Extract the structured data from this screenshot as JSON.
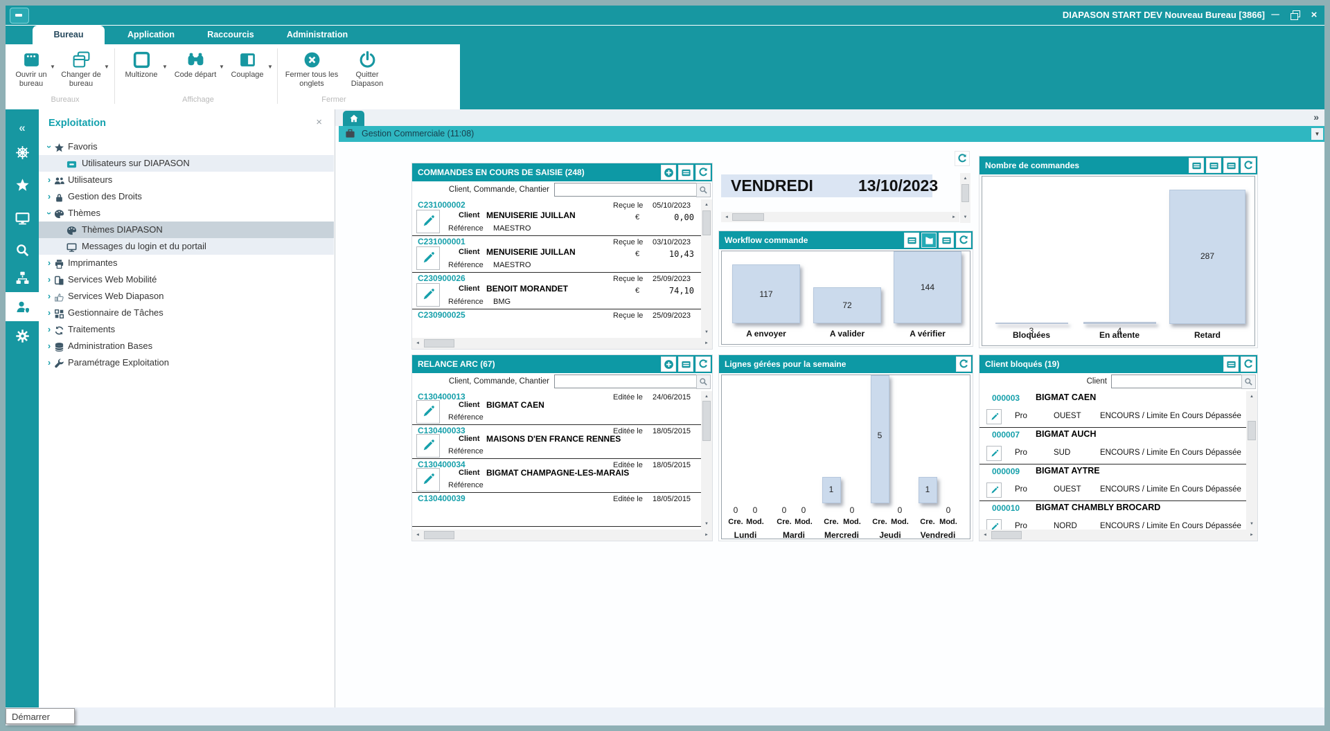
{
  "window": {
    "title": "DIAPASON START DEV Nouveau Bureau [3866]",
    "controls": {
      "minimize": "minimize",
      "restore": "restore",
      "close": "close"
    }
  },
  "ribbon": {
    "tabs": [
      {
        "label": "Bureau",
        "active": true
      },
      {
        "label": "Application",
        "active": false
      },
      {
        "label": "Raccourcis",
        "active": false
      },
      {
        "label": "Administration",
        "active": false
      }
    ],
    "groups": [
      {
        "label": "Bureaux",
        "buttons": [
          {
            "label": "Ouvrir un bureau",
            "icon": "open-desk",
            "dropdown": true
          },
          {
            "label": "Changer de bureau",
            "icon": "switch-desk",
            "dropdown": true
          }
        ]
      },
      {
        "label": "Affichage",
        "buttons": [
          {
            "label": "Multizone",
            "icon": "multizone",
            "dropdown": true
          },
          {
            "label": "Code départ",
            "icon": "binoculars",
            "dropdown": true
          },
          {
            "label": "Couplage",
            "icon": "couplage",
            "dropdown": true
          }
        ]
      },
      {
        "label": "Fermer",
        "buttons": [
          {
            "label": "Fermer tous les onglets",
            "icon": "close-circle",
            "dropdown": false
          },
          {
            "label": "Quitter Diapason",
            "icon": "power",
            "dropdown": false
          }
        ]
      }
    ]
  },
  "sidebar": {
    "icons": [
      {
        "name": "collapse",
        "active": false
      },
      {
        "name": "helm",
        "active": false
      },
      {
        "name": "star",
        "active": false
      },
      {
        "name": "monitor",
        "active": false
      },
      {
        "name": "search",
        "active": false
      },
      {
        "name": "orgchart",
        "active": false
      },
      {
        "name": "usershield",
        "active": true
      },
      {
        "name": "gear",
        "active": false
      }
    ]
  },
  "nav": {
    "title": "Exploitation",
    "close_icon": "×",
    "items": [
      {
        "label": "Favoris",
        "icon": "star",
        "chevron": "expanded",
        "level": 0,
        "state": "none"
      },
      {
        "label": "Utilisateurs sur DIAPASON",
        "icon": "message",
        "chevron": "none",
        "level": 1,
        "state": "highlight"
      },
      {
        "label": "Utilisateurs",
        "icon": "users",
        "chevron": "collapsed",
        "level": 0,
        "state": "none"
      },
      {
        "label": "Gestion des Droits",
        "icon": "lock",
        "chevron": "collapsed",
        "level": 0,
        "state": "none"
      },
      {
        "label": "Thèmes",
        "icon": "palette",
        "chevron": "expanded",
        "level": 0,
        "state": "none"
      },
      {
        "label": "Thèmes DIAPASON",
        "icon": "palette",
        "chevron": "none",
        "level": 1,
        "state": "selected"
      },
      {
        "label": "Messages du login et du portail",
        "icon": "monitor",
        "chevron": "none",
        "level": 1,
        "state": "highlight"
      },
      {
        "label": "Imprimantes",
        "icon": "printer",
        "chevron": "collapsed",
        "level": 0,
        "state": "none"
      },
      {
        "label": "Services Web Mobilité",
        "icon": "mobile",
        "chevron": "collapsed",
        "level": 0,
        "state": "none"
      },
      {
        "label": "Services Web Diapason",
        "icon": "thumbsup",
        "chevron": "collapsed",
        "level": 0,
        "state": "none"
      },
      {
        "label": "Gestionnaire de Tâches",
        "icon": "taskgrid",
        "chevron": "collapsed",
        "level": 0,
        "state": "none"
      },
      {
        "label": "Traitements",
        "icon": "cycle",
        "chevron": "collapsed",
        "level": 0,
        "state": "none"
      },
      {
        "label": "Administration  Bases",
        "icon": "database",
        "chevron": "collapsed",
        "level": 0,
        "state": "none"
      },
      {
        "label": "Paramétrage Exploitation",
        "icon": "wrench",
        "chevron": "collapsed",
        "level": 0,
        "state": "none"
      }
    ]
  },
  "content": {
    "gc_title": "Gestion Commerciale (11:08)",
    "overflow_chevron": "»",
    "dropdown_arrow": "▼"
  },
  "widgets": {
    "commandes": {
      "title": "COMMANDES EN COURS  DE SAISIE (248)",
      "buttons": [
        "plus",
        "form",
        "refresh"
      ],
      "search_label": "Client, Commande, Chantier",
      "search_value": "",
      "date_label": "Reçue le",
      "client_label": "Client",
      "ref_label": "Référence",
      "currency": "€",
      "rows": [
        {
          "id": "C231000002",
          "date": "05/10/2023",
          "client": "MENUISERIE JUILLAN",
          "reference": "MAESTRO",
          "amount": "0,00",
          "partial": false
        },
        {
          "id": "C231000001",
          "date": "03/10/2023",
          "client": "MENUISERIE JUILLAN",
          "reference": "MAESTRO",
          "amount": "10,43",
          "partial": false
        },
        {
          "id": "C230900026",
          "date": "25/09/2023",
          "client": "BENOIT MORANDET",
          "reference": "BMG",
          "amount": "74,10",
          "partial": false
        },
        {
          "id": "C230900025",
          "date": "25/09/2023",
          "client": "",
          "reference": "",
          "amount": "",
          "partial": true
        }
      ]
    },
    "date": {
      "day": "VENDREDI",
      "date": "13/10/2023",
      "buttons": [
        "refresh"
      ]
    },
    "relance": {
      "title": "RELANCE ARC (67)",
      "buttons": [
        "plus",
        "form",
        "refresh"
      ],
      "search_label": "Client, Commande, Chantier",
      "search_value": "",
      "date_label": "Editée le",
      "client_label": "Client",
      "ref_label": "Référence",
      "rows": [
        {
          "id": "C130400013",
          "date": "24/06/2015",
          "client": "BIGMAT CAEN",
          "reference": "",
          "partial": false
        },
        {
          "id": "C130400033",
          "date": "18/05/2015",
          "client": "MAISONS D'EN FRANCE RENNES",
          "reference": "",
          "partial": false
        },
        {
          "id": "C130400034",
          "date": "18/05/2015",
          "client": "BIGMAT CHAMPAGNE-LES-MARAIS",
          "reference": "",
          "partial": false
        },
        {
          "id": "C130400039",
          "date": "18/05/2015",
          "client": "",
          "reference": "",
          "partial": true
        }
      ]
    },
    "workflow": {
      "buttons": [
        "form",
        "chart:active",
        "form",
        "refresh"
      ]
    },
    "nombre": {
      "buttons": [
        "form",
        "form",
        "form",
        "refresh"
      ]
    },
    "lignes": {
      "buttons": [
        "refresh"
      ]
    },
    "clients": {
      "title": "Client bloqués  (19)",
      "buttons": [
        "form",
        "refresh"
      ],
      "search_label": "Client",
      "search_value": "",
      "rows": [
        {
          "code": "000003",
          "name": "BIGMAT CAEN",
          "type": "Pro",
          "region": "OUEST",
          "status": "ENCOURS / Limite En Cours Dépassée"
        },
        {
          "code": "000007",
          "name": "BIGMAT AUCH",
          "type": "Pro",
          "region": "SUD",
          "status": "ENCOURS / Limite En Cours Dépassée"
        },
        {
          "code": "000009",
          "name": "BIGMAT AYTRE",
          "type": "Pro",
          "region": "OUEST",
          "status": "ENCOURS / Limite En Cours Dépassée"
        },
        {
          "code": "000010",
          "name": "BIGMAT CHAMBLY BROCARD",
          "type": "Pro",
          "region": "NORD",
          "status": "ENCOURS / Limite En Cours Dépassée"
        }
      ]
    }
  },
  "chart_data": [
    {
      "type": "bar",
      "title": "Workflow commande",
      "categories": [
        "A envoyer",
        "A valider",
        "A vérifier"
      ],
      "values": [
        117,
        72,
        144
      ],
      "xlabel": "",
      "ylabel": "",
      "ylim": [
        0,
        150
      ],
      "grid": false,
      "legend_position": "none",
      "bar_color": "#cbdaec"
    },
    {
      "type": "bar",
      "title": "Nombre de commandes",
      "categories": [
        "Bloquées",
        "En attente",
        "Retard"
      ],
      "values": [
        3,
        4,
        287
      ],
      "xlabel": "",
      "ylabel": "",
      "ylim": [
        0,
        290
      ],
      "grid": false,
      "legend_position": "none",
      "bar_color": "#cbdaec"
    },
    {
      "type": "bar",
      "title": "Lignes gérées pour la semaine",
      "categories": [
        "Lundi",
        "Mardi",
        "Mercredi",
        "Jeudi",
        "Vendredi"
      ],
      "series": [
        {
          "name": "Cre.",
          "values": [
            0,
            0,
            1,
            5,
            1
          ]
        },
        {
          "name": "Mod.",
          "values": [
            0,
            0,
            0,
            0,
            0
          ]
        }
      ],
      "xlabel": "",
      "ylabel": "",
      "ylim": [
        0,
        5
      ],
      "grid": false,
      "legend_position": "below-bars",
      "bar_color": "#cbdaec"
    }
  ],
  "status": {
    "tooltip": "Démarrer"
  },
  "colors": {
    "teal": "#1797a1",
    "teal_light": "#2fb7c1",
    "widget_header": "#0d99a5",
    "bar_fill": "#cbdaec",
    "link": "#16a0ab",
    "date_band": "#dbe5f3"
  }
}
